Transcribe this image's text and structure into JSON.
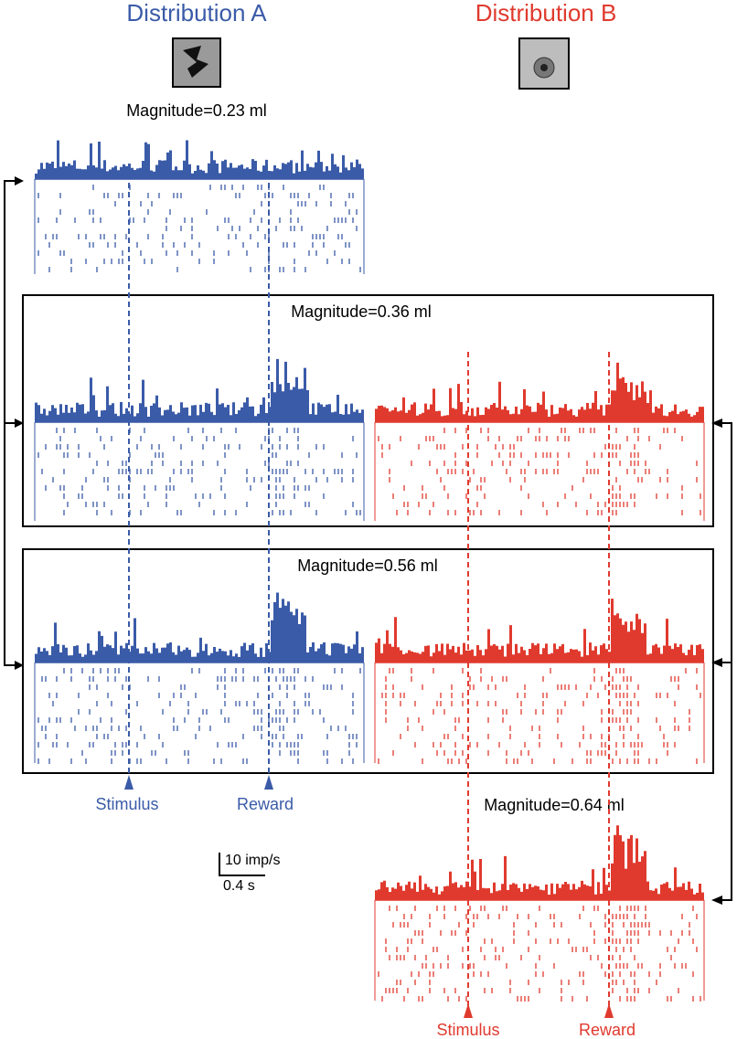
{
  "header": {
    "left_title": "Distribution A",
    "right_title": "Distribution B"
  },
  "panels": [
    {
      "label": "Magnitude=0.23 ml"
    },
    {
      "label": "Magnitude=0.36 ml"
    },
    {
      "label": "Magnitude=0.56 ml"
    },
    {
      "label": "Magnitude=0.64 ml"
    }
  ],
  "events": {
    "left_stimulus": "Stimulus",
    "left_reward": "Reward",
    "right_stimulus": "Stimulus",
    "right_reward": "Reward"
  },
  "scale_bar": {
    "rate": "10 imp/s",
    "time": "0.4 s"
  }
}
